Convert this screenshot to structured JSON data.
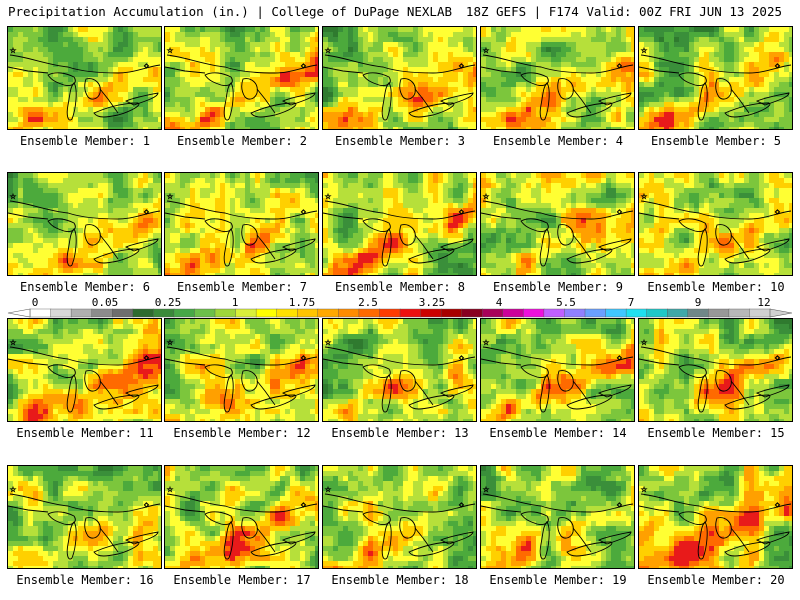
{
  "header": {
    "title": "Precipitation Accumulation (in.) | College of DuPage NEXLAB",
    "run_info": "18Z GEFS | F174 Valid: 00Z FRI JUN 13 2025"
  },
  "colorbar": {
    "tick_labels": [
      "0",
      "0.05",
      "0.25",
      "1",
      "1.75",
      "2.5",
      "3.25",
      "4",
      "5.5",
      "7",
      "9",
      "12"
    ],
    "colors": [
      "#ffffff",
      "#d8d8d8",
      "#b0b0b0",
      "#8c8c8c",
      "#6e6e6e",
      "#2f6b2f",
      "#3a8a3a",
      "#47a847",
      "#6cc04a",
      "#9fd63a",
      "#d9f03a",
      "#ffff00",
      "#ffe100",
      "#ffc400",
      "#ffa800",
      "#ff8c00",
      "#ff6a00",
      "#ff3c00",
      "#ee1010",
      "#cc0000",
      "#a80000",
      "#880020",
      "#a8005a",
      "#cc0099",
      "#ee10dd",
      "#c060ff",
      "#9080ff",
      "#6aa0ff",
      "#40c8ff",
      "#20e0f0",
      "#20c8c8",
      "#40a8a8",
      "#708888",
      "#989898",
      "#b8b8b8",
      "#d0d0d0"
    ]
  },
  "members": [
    {
      "label": "Ensemble Member: 1"
    },
    {
      "label": "Ensemble Member: 2"
    },
    {
      "label": "Ensemble Member: 3"
    },
    {
      "label": "Ensemble Member: 4"
    },
    {
      "label": "Ensemble Member: 5"
    },
    {
      "label": "Ensemble Member: 6"
    },
    {
      "label": "Ensemble Member: 7"
    },
    {
      "label": "Ensemble Member: 8"
    },
    {
      "label": "Ensemble Member: 9"
    },
    {
      "label": "Ensemble Member: 10"
    },
    {
      "label": "Ensemble Member: 11"
    },
    {
      "label": "Ensemble Member: 12"
    },
    {
      "label": "Ensemble Member: 13"
    },
    {
      "label": "Ensemble Member: 14"
    },
    {
      "label": "Ensemble Member: 15"
    },
    {
      "label": "Ensemble Member: 16"
    },
    {
      "label": "Ensemble Member: 17"
    },
    {
      "label": "Ensemble Member: 18"
    },
    {
      "label": "Ensemble Member: 19"
    },
    {
      "label": "Ensemble Member: 20"
    }
  ]
}
